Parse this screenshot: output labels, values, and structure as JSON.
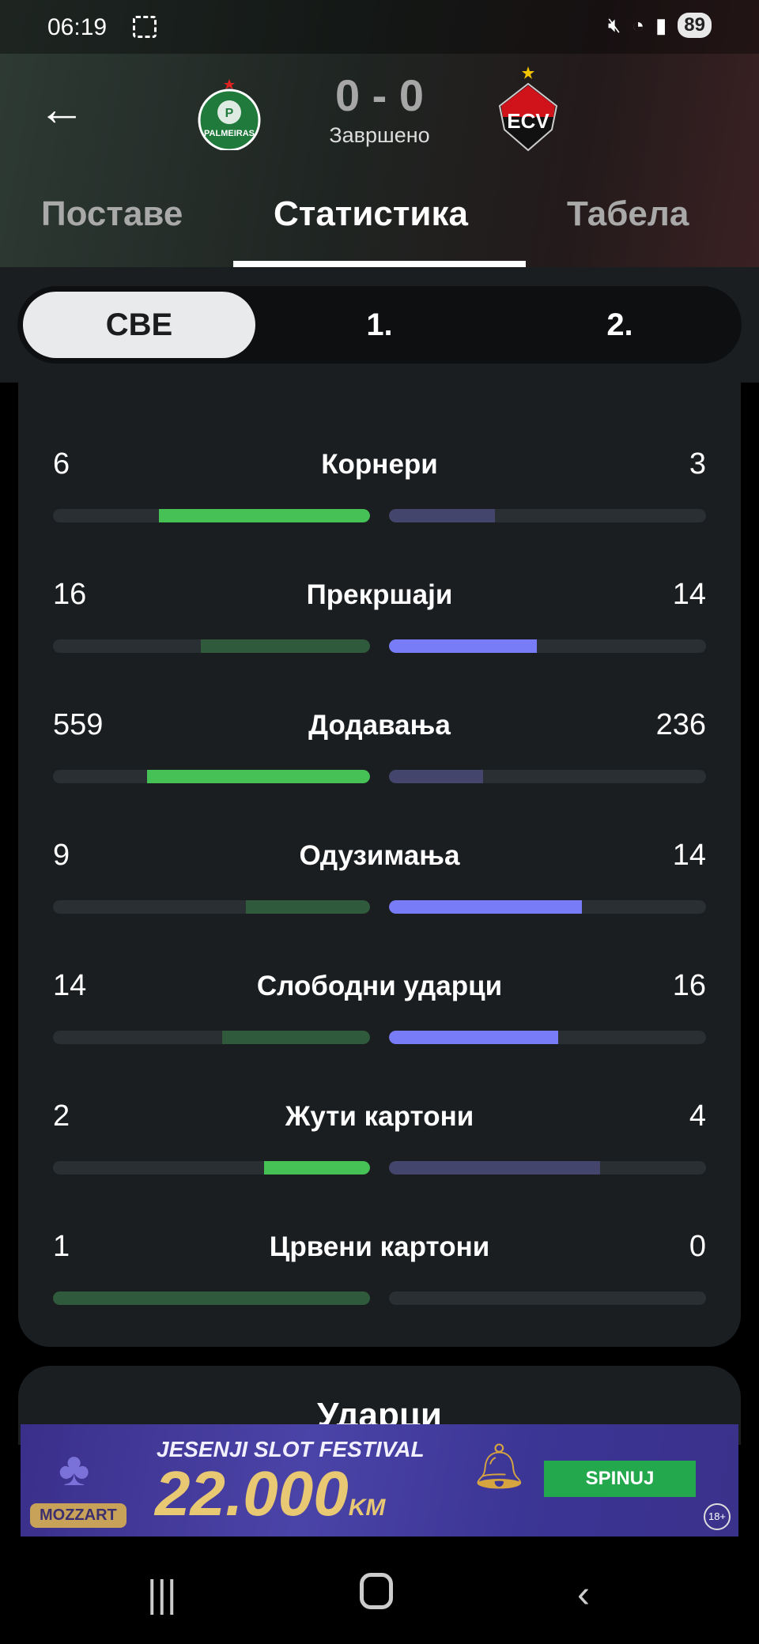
{
  "status_bar": {
    "time": "06:19",
    "battery": "89"
  },
  "match": {
    "home_team": "Palmeiras",
    "home_logo_text": "PALMEIRAS",
    "away_team": "Vitória",
    "score": "0 - 0",
    "status": "Завршено"
  },
  "tabs": [
    {
      "label": "Поставе",
      "active": false
    },
    {
      "label": "Статистика",
      "active": true
    },
    {
      "label": "Табела",
      "active": false
    }
  ],
  "periods": [
    {
      "label": "СВЕ",
      "active": true
    },
    {
      "label": "1.",
      "active": false
    },
    {
      "label": "2.",
      "active": false
    }
  ],
  "colors": {
    "home_strong": "#45c155",
    "home_weak": "#2f5a3b",
    "away_strong": "#787cf7",
    "away_weak": "#43456c",
    "track": "#2a2f33"
  },
  "stats": [
    {
      "label": "Корнери",
      "home": "6",
      "away": "3",
      "home_frac": 0.667,
      "away_frac": 0.333,
      "home_strong": true,
      "away_strong": false
    },
    {
      "label": "Прекршаји",
      "home": "16",
      "away": "14",
      "home_frac": 0.533,
      "away_frac": 0.467,
      "home_strong": false,
      "away_strong": true
    },
    {
      "label": "Додавања",
      "home": "559",
      "away": "236",
      "home_frac": 0.703,
      "away_frac": 0.297,
      "home_strong": true,
      "away_strong": false
    },
    {
      "label": "Одузимања",
      "home": "9",
      "away": "14",
      "home_frac": 0.391,
      "away_frac": 0.609,
      "home_strong": false,
      "away_strong": true
    },
    {
      "label": "Слободни ударци",
      "home": "14",
      "away": "16",
      "home_frac": 0.467,
      "away_frac": 0.533,
      "home_strong": false,
      "away_strong": true
    },
    {
      "label": "Жути картони",
      "home": "2",
      "away": "4",
      "home_frac": 0.333,
      "away_frac": 0.667,
      "home_strong": true,
      "away_strong": false
    },
    {
      "label": "Црвени картони",
      "home": "1",
      "away": "0",
      "home_frac": 1.0,
      "away_frac": 0.0,
      "home_strong": false,
      "away_strong": false
    }
  ],
  "next_section": {
    "title": "Ударци"
  },
  "ad": {
    "headline": "JESENJI SLOT FESTIVAL",
    "amount": "22.000",
    "currency": "KM",
    "brand": "MOZZART",
    "cta": "SPINUJ",
    "age": "18+"
  }
}
